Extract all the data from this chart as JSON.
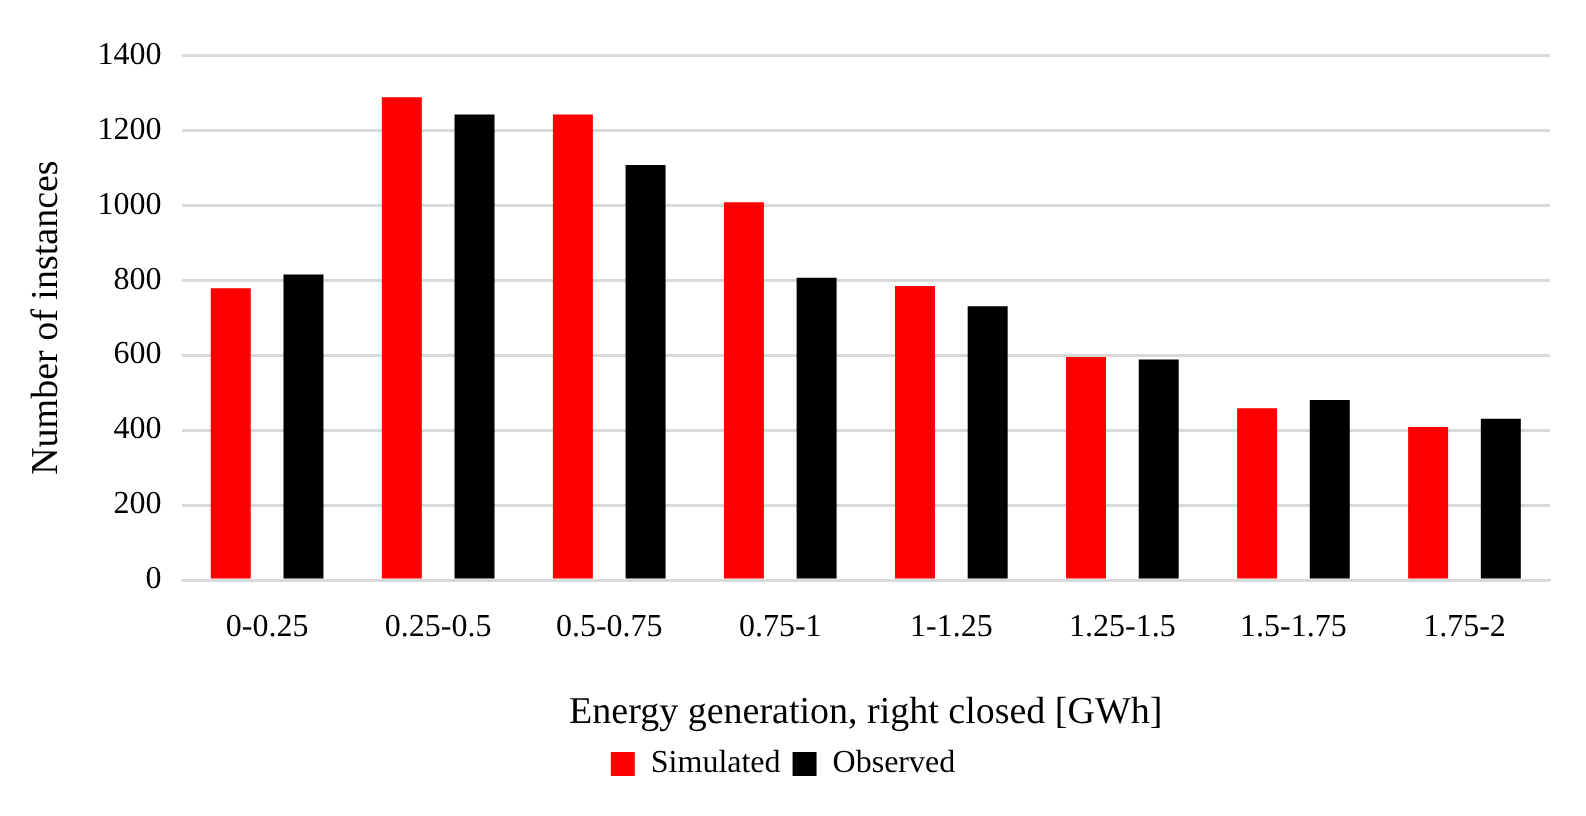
{
  "chart_data": {
    "type": "bar",
    "xlabel": "Energy generation, right closed [GWh]",
    "ylabel": "Number of instances",
    "categories": [
      "0-0.25",
      "0.25-0.5",
      "0.5-0.75",
      "0.75-1",
      "1-1.25",
      "1.25-1.5",
      "1.5-1.75",
      "1.75-2"
    ],
    "series": [
      {
        "name": "Simulated",
        "color": "#ff0000",
        "values": [
          778,
          1288,
          1242,
          1008,
          784,
          595,
          458,
          408
        ]
      },
      {
        "name": "Observed",
        "color": "#000000",
        "values": [
          815,
          1242,
          1107,
          806,
          730,
          588,
          480,
          430
        ]
      }
    ],
    "ylim": [
      0,
      1400
    ],
    "yticks": [
      0,
      200,
      400,
      600,
      800,
      1000,
      1200,
      1400
    ],
    "grid": "y",
    "legend": "bottom"
  }
}
